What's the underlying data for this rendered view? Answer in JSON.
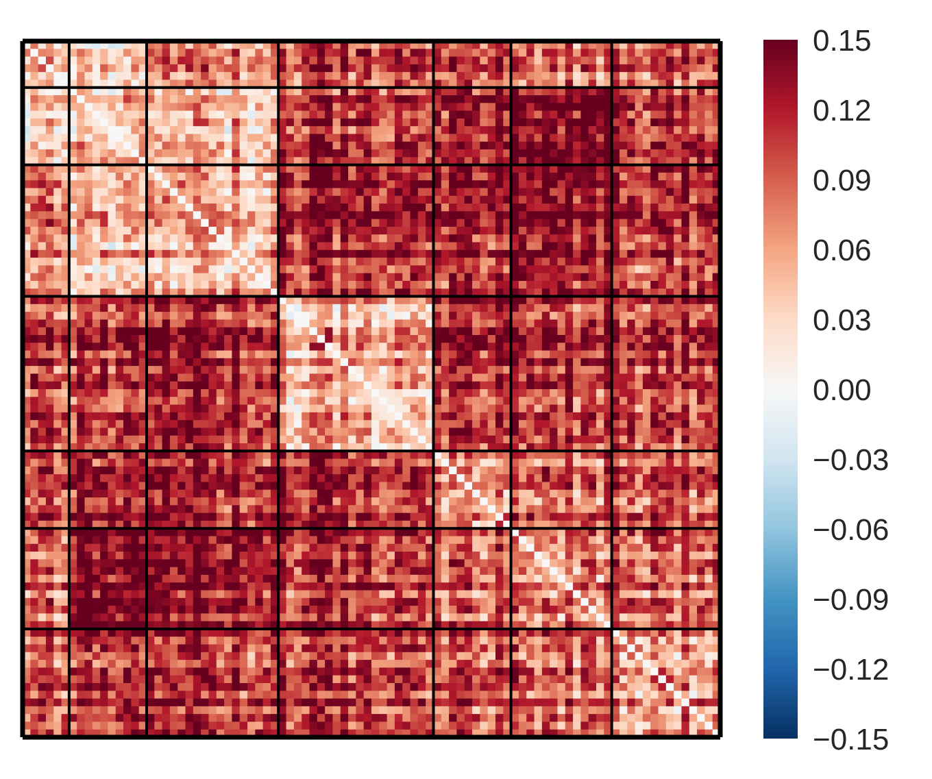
{
  "chart_data": {
    "type": "heatmap",
    "title": "",
    "xlabel": "",
    "ylabel": "",
    "n": 90,
    "block_sizes": [
      6,
      10,
      17,
      20,
      10,
      13,
      14
    ],
    "colormap": "RdBu_r",
    "vmin": -0.15,
    "vmax": 0.15,
    "grid": "black lines at block boundaries",
    "colorbar": {
      "position": "right",
      "ticks": [
        "0.15",
        "0.12",
        "0.09",
        "0.06",
        "0.03",
        "0.00",
        "−0.03",
        "−0.06",
        "−0.09",
        "−0.12",
        "−0.15"
      ]
    },
    "block_means": [
      [
        0.05,
        0.02,
        0.07,
        0.1,
        0.1,
        0.08,
        0.09
      ],
      [
        0.02,
        0.04,
        0.04,
        0.11,
        0.12,
        0.14,
        0.11
      ],
      [
        0.07,
        0.04,
        0.05,
        0.12,
        0.12,
        0.13,
        0.11
      ],
      [
        0.1,
        0.11,
        0.12,
        0.06,
        0.12,
        0.11,
        0.11
      ],
      [
        0.1,
        0.12,
        0.12,
        0.12,
        0.07,
        0.09,
        0.1
      ],
      [
        0.08,
        0.14,
        0.13,
        0.11,
        0.09,
        0.07,
        0.09
      ],
      [
        0.09,
        0.11,
        0.11,
        0.11,
        0.1,
        0.09,
        0.07
      ]
    ]
  }
}
